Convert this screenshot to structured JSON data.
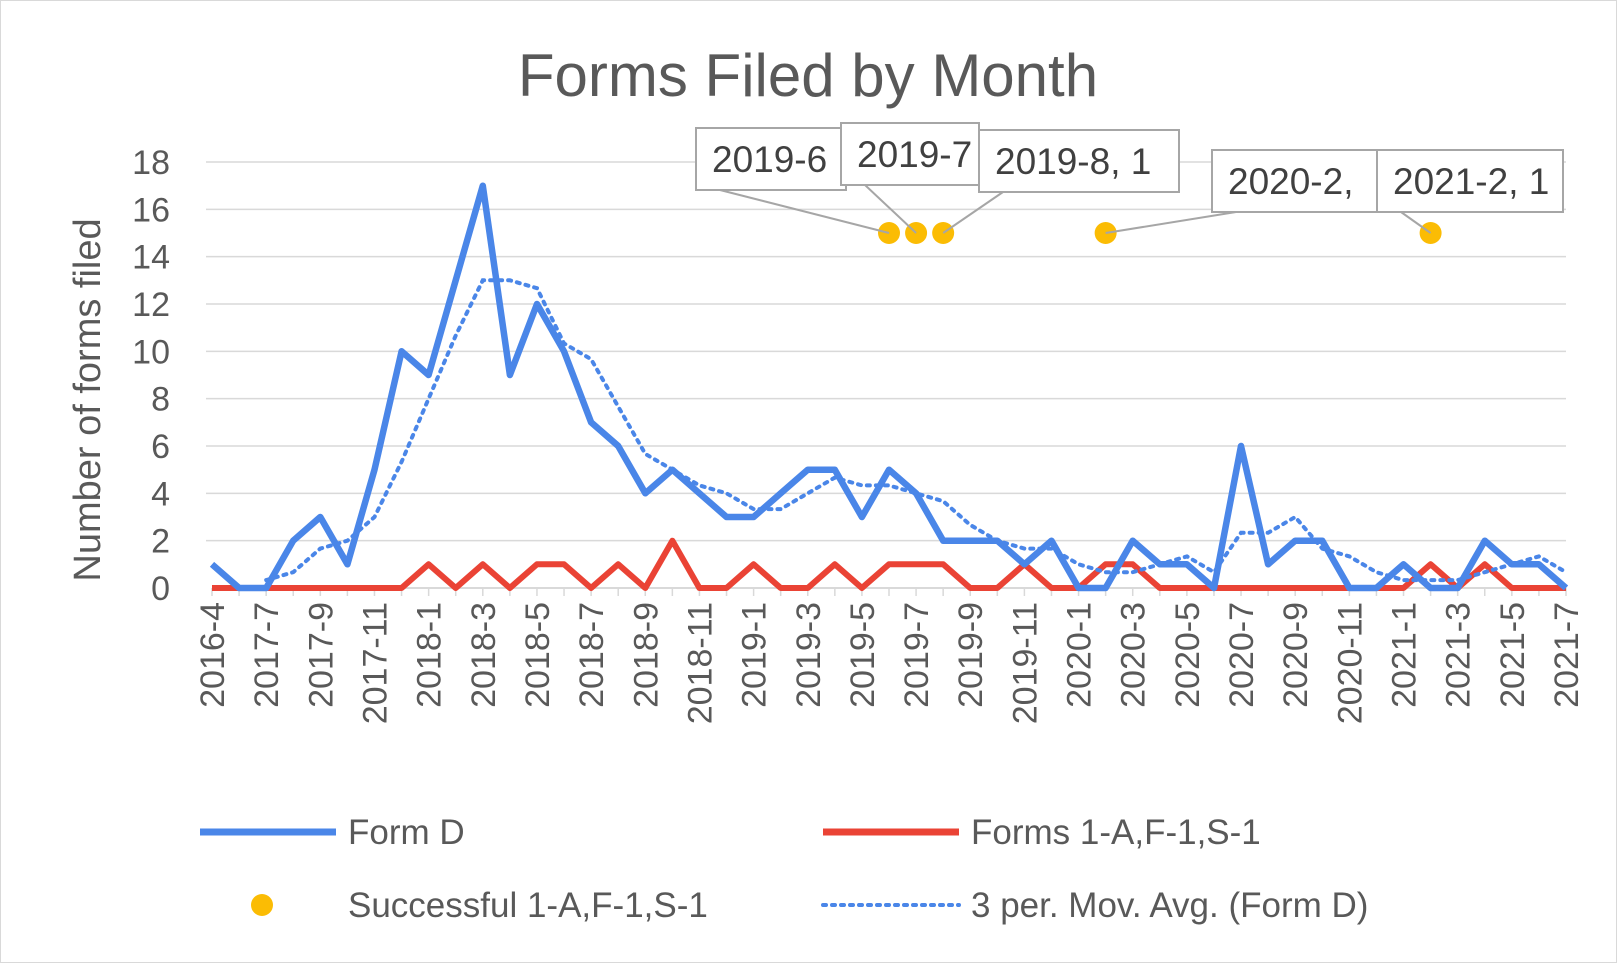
{
  "chart_data": {
    "type": "line",
    "title": "Forms Filed by Month",
    "ylabel": "Number of forms filed",
    "xlabel": "",
    "ylim": [
      0,
      18
    ],
    "yticks": [
      0,
      2,
      4,
      6,
      8,
      10,
      12,
      14,
      16,
      18
    ],
    "grid": true,
    "legend_position": "bottom",
    "categories": [
      "2016-4",
      "2016-5",
      "2017-7",
      "2017-8",
      "2017-9",
      "2017-10",
      "2017-11",
      "2017-12",
      "2018-1",
      "2018-2",
      "2018-3",
      "2018-4",
      "2018-5",
      "2018-6",
      "2018-7",
      "2018-8",
      "2018-9",
      "2018-10",
      "2018-11",
      "2018-12",
      "2019-1",
      "2019-2",
      "2019-3",
      "2019-4",
      "2019-5",
      "2019-6",
      "2019-7",
      "2019-8",
      "2019-9",
      "2019-10",
      "2019-11",
      "2019-12",
      "2020-1",
      "2020-2",
      "2020-3",
      "2020-4",
      "2020-5",
      "2020-6",
      "2020-7",
      "2020-8",
      "2020-9",
      "2020-10",
      "2020-11",
      "2020-12",
      "2021-1",
      "2021-2",
      "2021-3",
      "2021-4",
      "2021-5",
      "2021-6",
      "2021-7"
    ],
    "tick_labels": [
      "2016-4",
      "2017-7",
      "2017-9",
      "2017-11",
      "2018-1",
      "2018-3",
      "2018-5",
      "2018-7",
      "2018-9",
      "2018-11",
      "2019-1",
      "2019-3",
      "2019-5",
      "2019-7",
      "2019-9",
      "2019-11",
      "2020-1",
      "2020-3",
      "2020-5",
      "2020-7",
      "2020-9",
      "2020-11",
      "2021-1",
      "2021-3",
      "2021-5",
      "2021-7"
    ],
    "series": [
      {
        "name": "Form D",
        "style": "solid",
        "color": "#4A86E8",
        "values": [
          1,
          0,
          0,
          2,
          3,
          1,
          5,
          10,
          9,
          13,
          17,
          9,
          12,
          10,
          7,
          6,
          4,
          5,
          4,
          3,
          3,
          4,
          5,
          5,
          3,
          5,
          4,
          2,
          2,
          2,
          1,
          2,
          0,
          0,
          2,
          1,
          1,
          0,
          6,
          1,
          2,
          2,
          0,
          0,
          1,
          0,
          0,
          2,
          1,
          1,
          0
        ]
      },
      {
        "name": "Forms 1-A,F-1,S-1",
        "style": "solid",
        "color": "#EA4335",
        "values": [
          0,
          0,
          0,
          0,
          0,
          0,
          0,
          0,
          1,
          0,
          1,
          0,
          1,
          1,
          0,
          1,
          0,
          2,
          0,
          0,
          1,
          0,
          0,
          1,
          0,
          1,
          1,
          1,
          0,
          0,
          1,
          0,
          0,
          1,
          1,
          0,
          0,
          0,
          0,
          0,
          0,
          0,
          0,
          0,
          0,
          1,
          0,
          1,
          0,
          0,
          0
        ]
      },
      {
        "name": "Successful 1-A,F-1,S-1",
        "style": "marker",
        "color": "#FBBC04",
        "points": [
          {
            "x": "2019-6",
            "y": 15,
            "label": "2019-6"
          },
          {
            "x": "2019-7",
            "y": 15,
            "label": "2019-7"
          },
          {
            "x": "2019-8",
            "y": 15,
            "label": "2019-8, 1"
          },
          {
            "x": "2020-2",
            "y": 15,
            "label": "2020-2,"
          },
          {
            "x": "2021-2",
            "y": 15,
            "label": "2021-2, 1"
          }
        ]
      },
      {
        "name": "3 per. Mov. Avg. (Form D)",
        "style": "dotted",
        "color": "#4A86E8",
        "period": 3,
        "of": "Form D"
      }
    ]
  },
  "colors": {
    "form_d": "#4A86E8",
    "forms_1a": "#EA4335",
    "successful": "#FBBC04",
    "grid": "#d9d9d9",
    "text": "#595959"
  }
}
